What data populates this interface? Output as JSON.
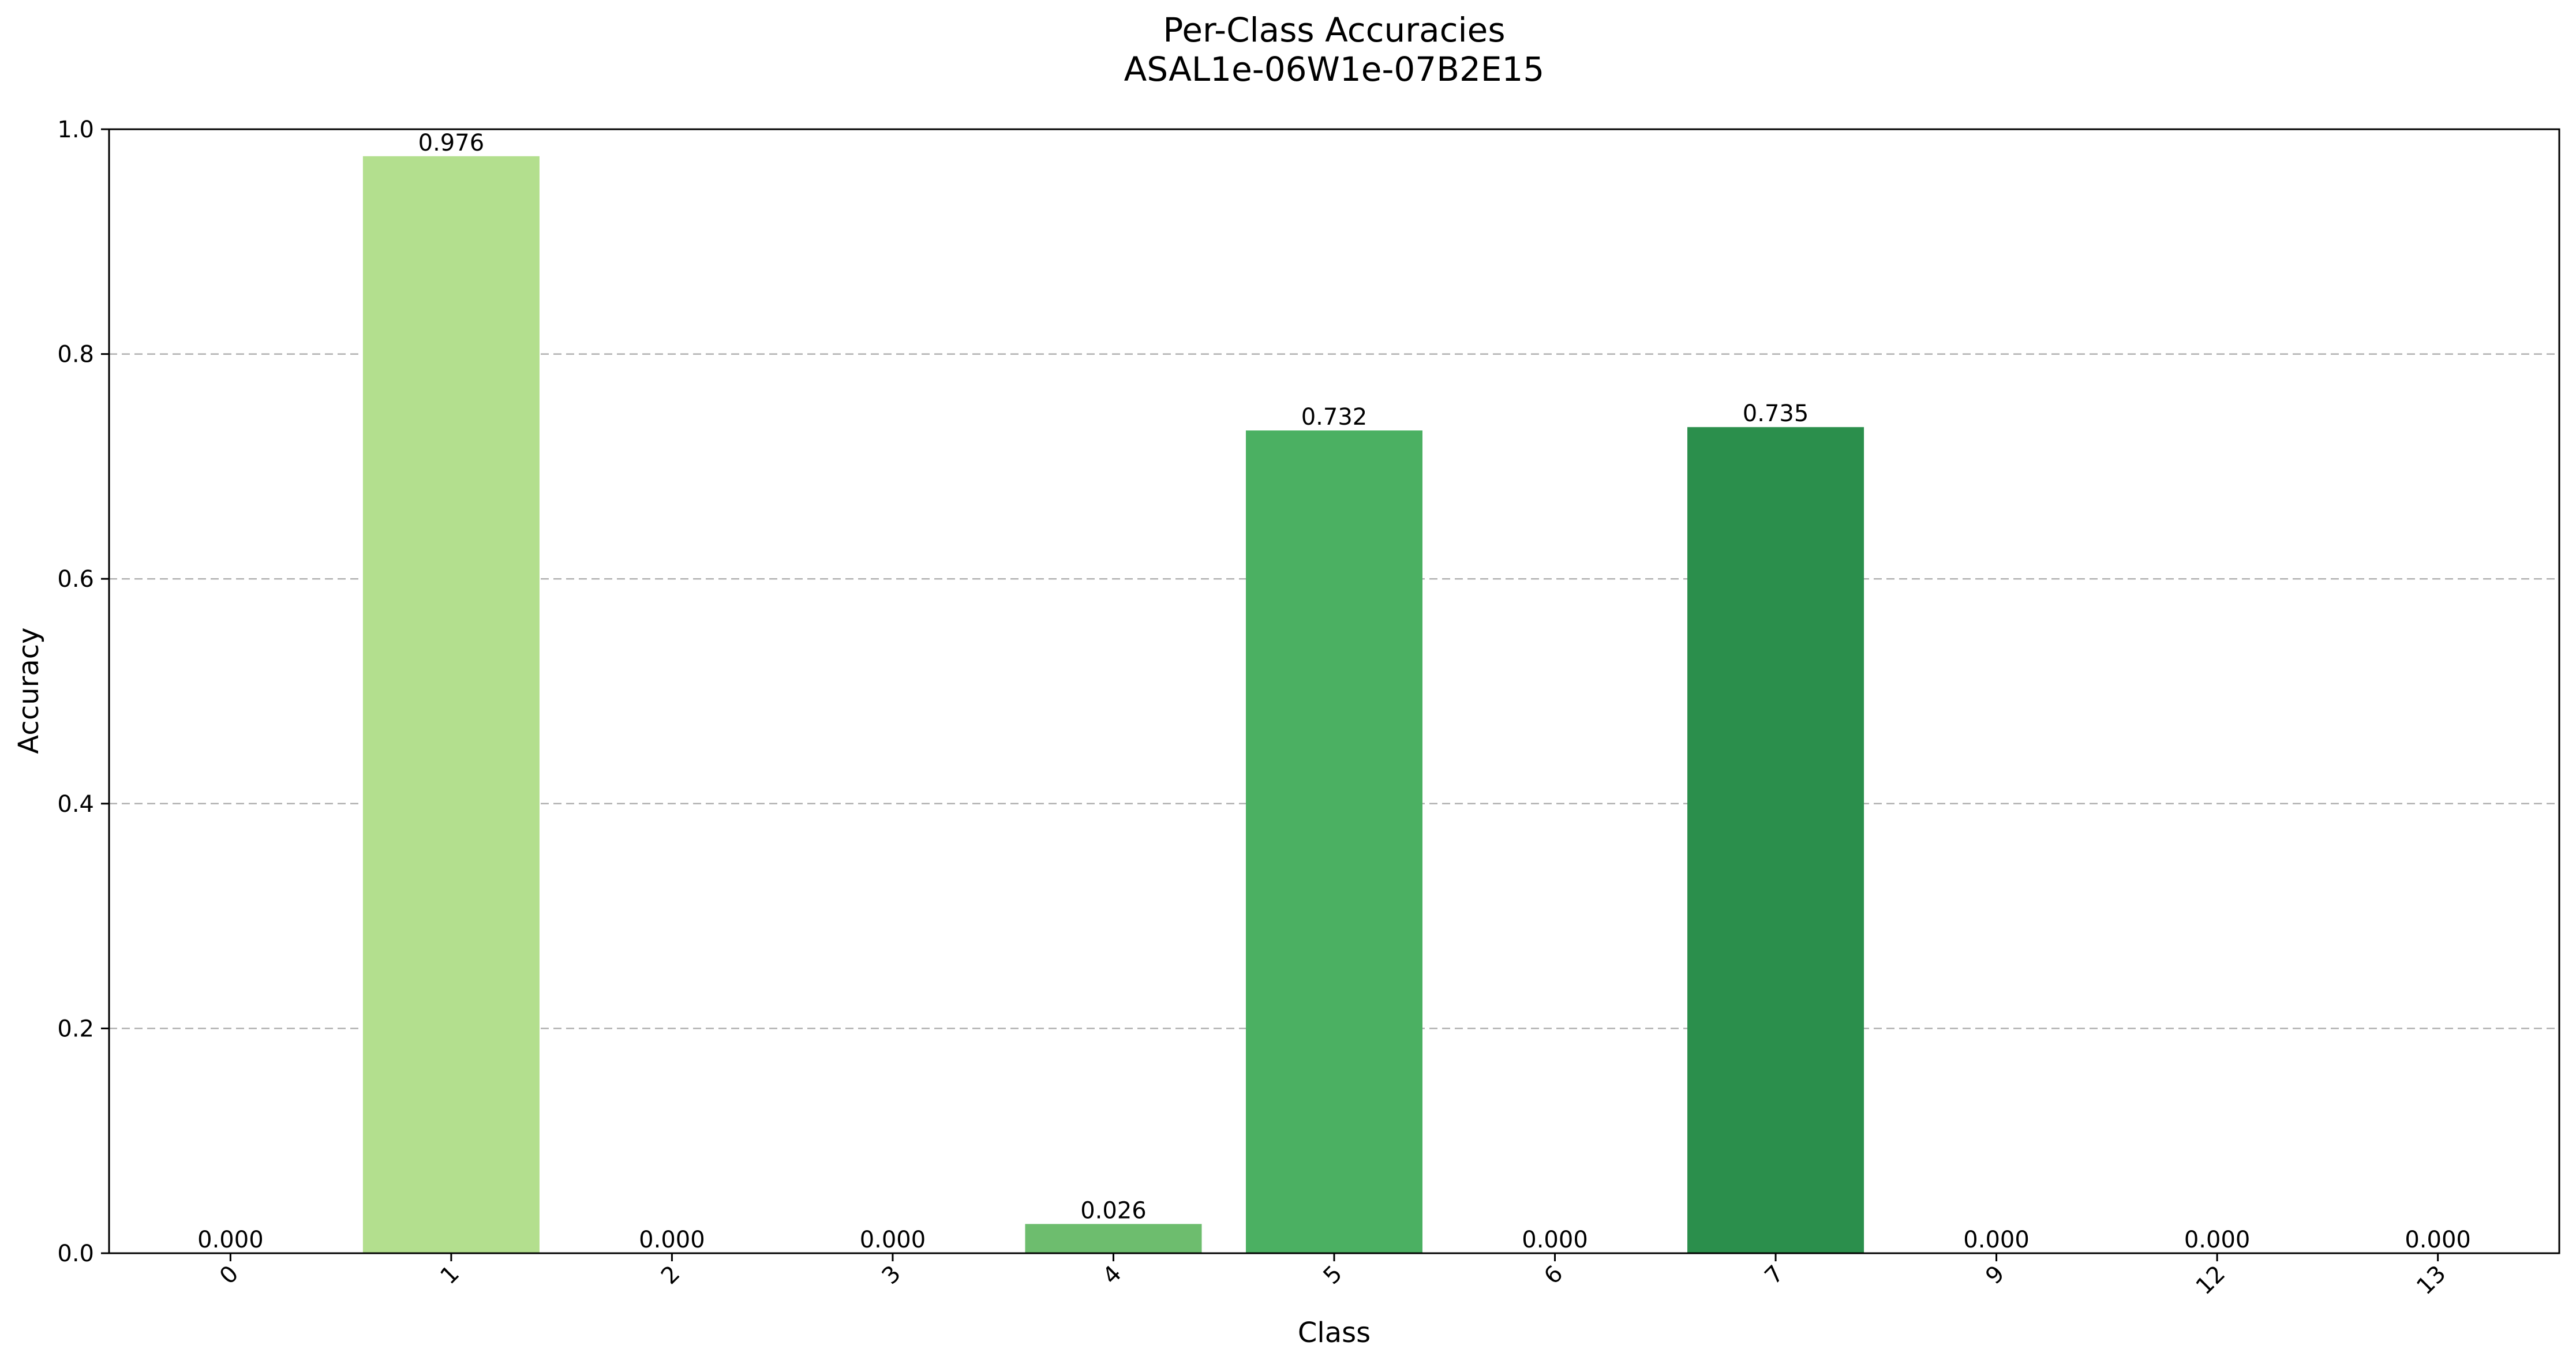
{
  "chart_data": {
    "type": "bar",
    "title": "Per-Class Accuracies",
    "subtitle": "ASAL1e-06W1e-07B2E15",
    "xlabel": "Class",
    "ylabel": "Accuracy",
    "categories": [
      "0",
      "1",
      "2",
      "3",
      "4",
      "5",
      "6",
      "7",
      "9",
      "12",
      "13"
    ],
    "values": [
      0.0,
      0.976,
      0.0,
      0.0,
      0.026,
      0.732,
      0.0,
      0.735,
      0.0,
      0.0,
      0.0
    ],
    "value_labels": [
      "0.000",
      "0.976",
      "0.000",
      "0.000",
      "0.026",
      "0.732",
      "0.000",
      "0.735",
      "0.000",
      "0.000",
      "0.000"
    ],
    "bar_colors": [
      "#f7fcb9",
      "#b3df8e",
      "#9fd585",
      "#88ca7d",
      "#6dbd6e",
      "#4bb062",
      "#3aa257",
      "#2b8f4c",
      "#1b7a3f",
      "#0c6a35",
      "#005a2e"
    ],
    "ylim": [
      0,
      1.0
    ],
    "yticks": [
      0.0,
      0.2,
      0.4,
      0.6,
      0.8,
      1.0
    ],
    "ytick_labels": [
      "0.0",
      "0.2",
      "0.4",
      "0.6",
      "0.8",
      "1.0"
    ],
    "grid": "y-dashed",
    "legend": "none"
  }
}
